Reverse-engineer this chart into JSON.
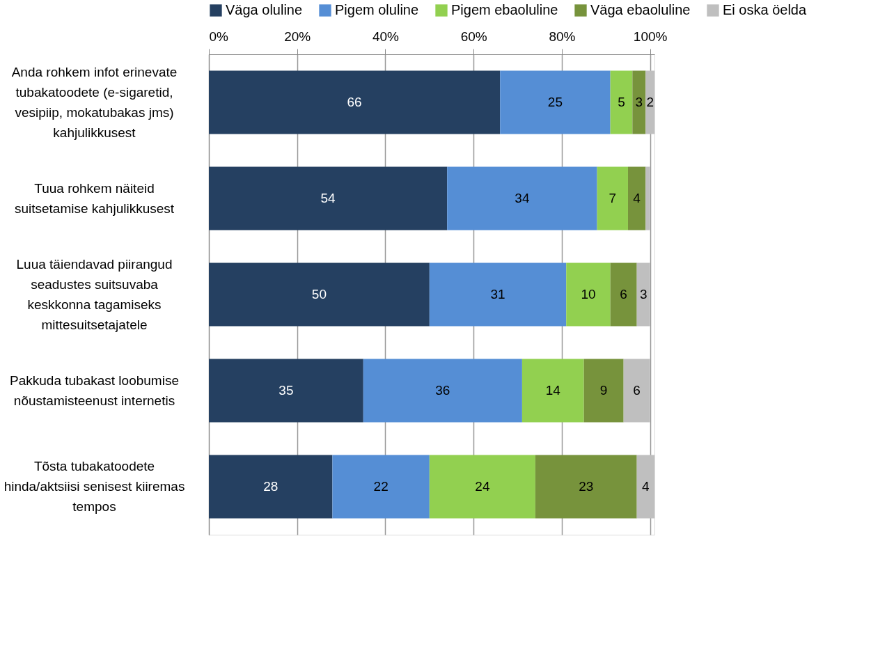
{
  "chart_data": {
    "type": "bar",
    "orientation": "horizontal",
    "stacked": true,
    "legend": "top",
    "grid": "x",
    "categories": [
      "Anda rohkem  infot erinevate\ntubakatoodete (e-sigaretid,\nvesipiip, mokatubakas jms)\nkahjulikkusest",
      "Tuua rohkem näiteid\nsuitsetamise kahjulikkusest",
      "Luua täiendavad piirangud\nseadustes suitsuvaba\nkeskkonna  tagamiseks\nmittesuitsetajatele",
      "Pakkuda tubakast  loobumise\nnõustamisteenust  internetis",
      "Tõsta tubakatoodete\nhinda/aktsiisi senisest kiiremas\ntempos"
    ],
    "xlim": [
      0,
      101
    ],
    "xticks": [
      {
        "value": 0,
        "label": "0%"
      },
      {
        "value": 20,
        "label": "20%"
      },
      {
        "value": 40,
        "label": "40%"
      },
      {
        "value": 60,
        "label": "60%"
      },
      {
        "value": 80,
        "label": "80%"
      },
      {
        "value": 100,
        "label": "100%"
      }
    ],
    "series": [
      {
        "name": "Väga oluline",
        "color": "#254061",
        "values": [
          66,
          54,
          50,
          35,
          28
        ],
        "value_labels": [
          "66",
          "54",
          "50",
          "35",
          "28"
        ]
      },
      {
        "name": "Pigem oluline",
        "color": "#558ed5",
        "values": [
          25,
          34,
          31,
          36,
          22
        ],
        "value_labels": [
          "25",
          "34",
          "31",
          "36",
          "22"
        ]
      },
      {
        "name": "Pigem ebaoluline",
        "color": "#92d050",
        "values": [
          5,
          7,
          10,
          14,
          24
        ],
        "value_labels": [
          "5",
          "7",
          "10",
          "14",
          "24"
        ]
      },
      {
        "name": "Väga ebaoluline",
        "color": "#77933c",
        "values": [
          3,
          4,
          6,
          9,
          23
        ],
        "value_labels": [
          "3",
          "4",
          "6",
          "9",
          "23"
        ]
      },
      {
        "name": "Ei oska öelda",
        "color": "#bfbfbf",
        "values": [
          2,
          1,
          3,
          6,
          4
        ],
        "value_labels": [
          "2",
          null,
          "3",
          "6",
          "4"
        ]
      }
    ]
  }
}
